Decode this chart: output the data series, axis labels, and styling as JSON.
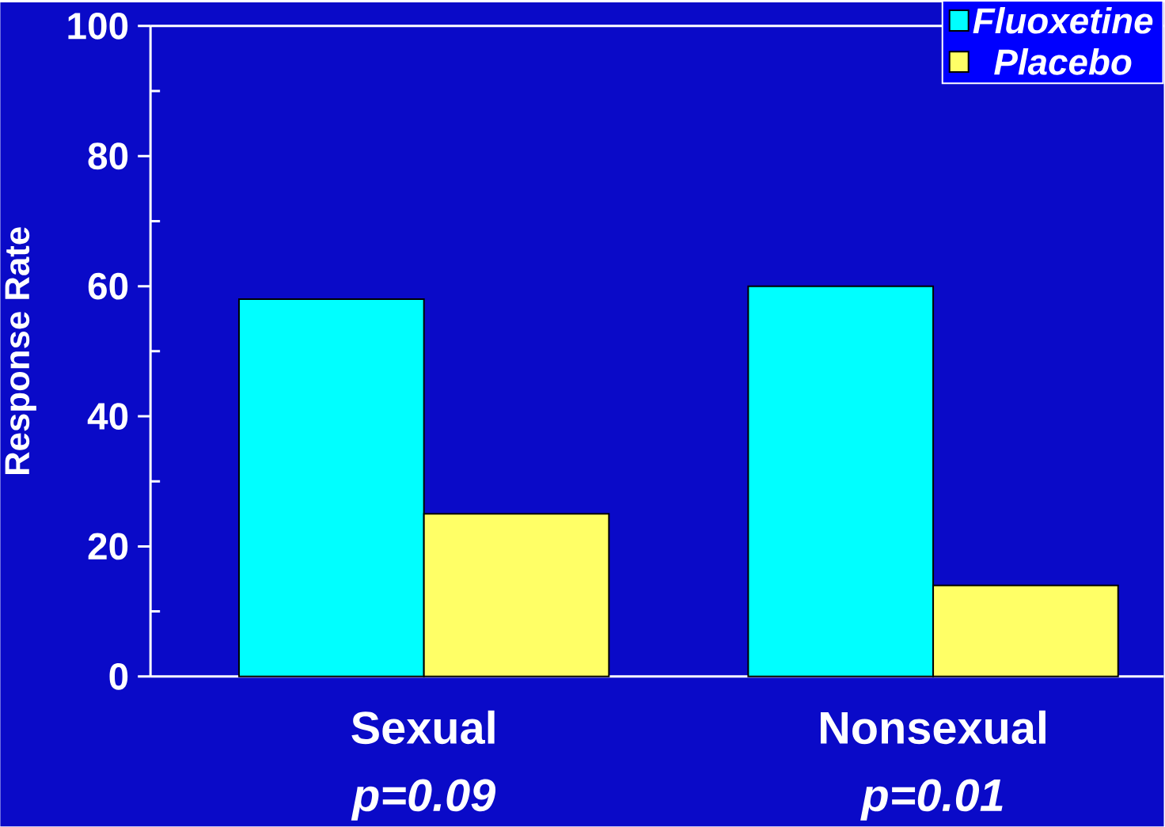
{
  "chart_data": {
    "type": "bar",
    "ylabel": "Response Rate",
    "categories": [
      "Sexual",
      "Nonsexual"
    ],
    "series": [
      {
        "name": "Fluoxetine",
        "color": "#00ffff",
        "values": [
          58,
          60
        ]
      },
      {
        "name": "Placebo",
        "color": "#ffff66",
        "values": [
          25,
          14
        ]
      }
    ],
    "ylim": [
      0,
      100
    ],
    "yticks": [
      0,
      {
        "value": 10,
        "label": null
      },
      20,
      {
        "value": 30,
        "label": null
      },
      40,
      {
        "value": 50,
        "label": null
      },
      60,
      {
        "value": 70,
        "label": null
      },
      80,
      {
        "value": 90,
        "label": null
      },
      100
    ],
    "legend": "top right",
    "annotations": [
      "*p*=0.09",
      "*p*=0.01"
    ]
  }
}
